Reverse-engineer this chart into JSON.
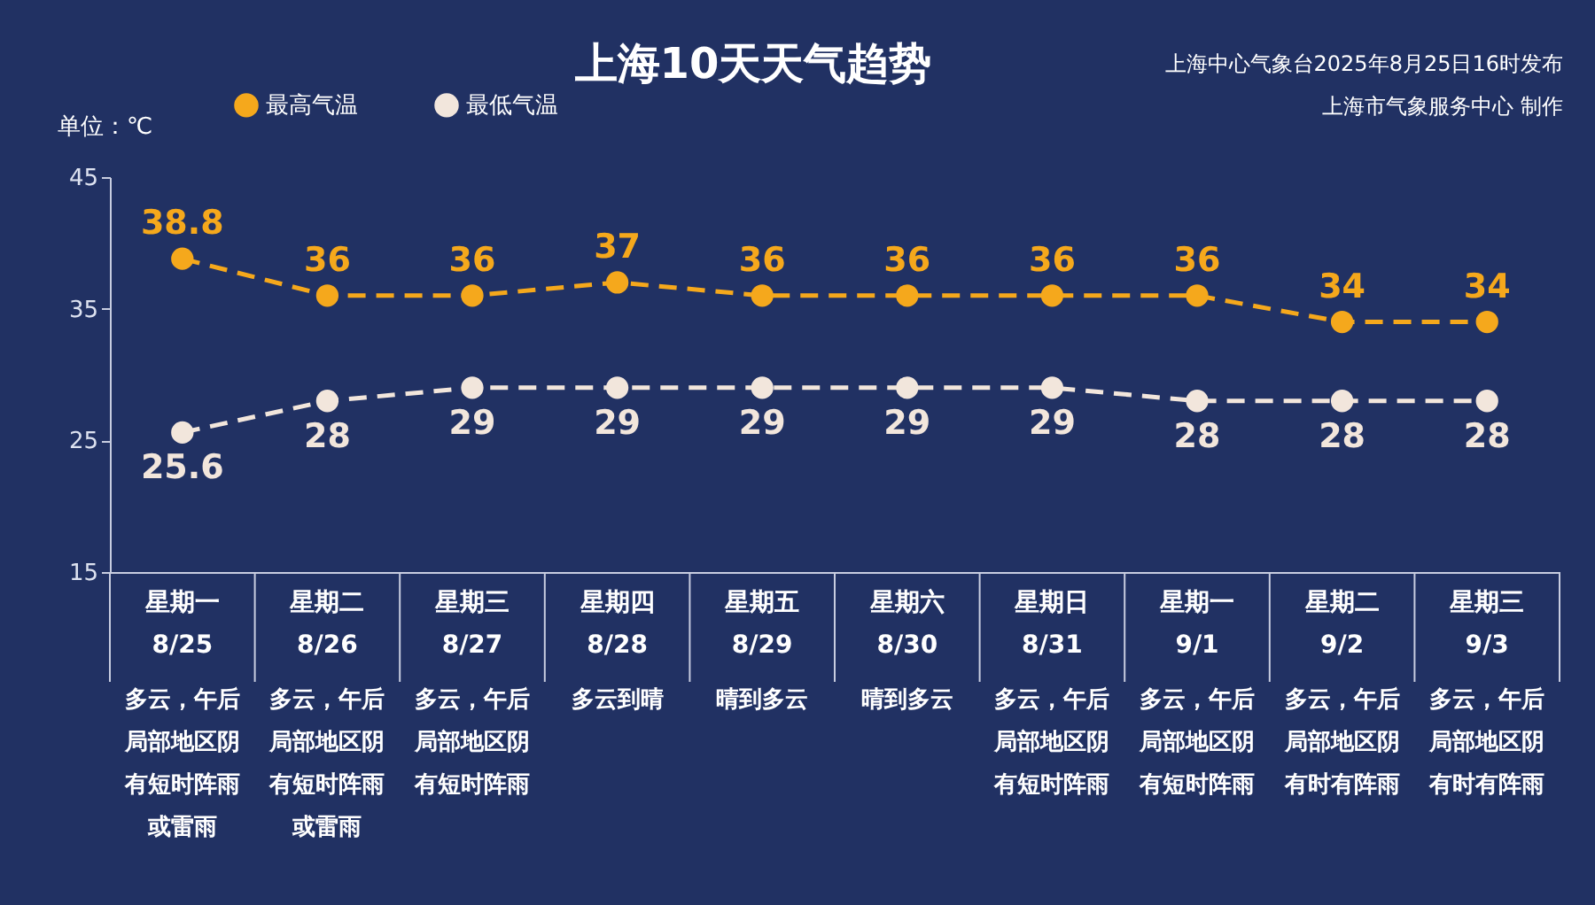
{
  "chart_data": {
    "type": "line",
    "title": "上海10天天气趋势",
    "ylabel": "单位：℃",
    "categories": [
      "星期一\n8/25",
      "星期二\n8/26",
      "星期三\n8/27",
      "星期四\n8/28",
      "星期五\n8/29",
      "星期六\n8/30",
      "星期日\n8/31",
      "星期一\n9/1",
      "星期二\n9/2",
      "星期三\n9/3"
    ],
    "series": [
      {
        "name": "最高气温",
        "color": "#f5a81c",
        "values": [
          38.8,
          36,
          36,
          37,
          36,
          36,
          36,
          36,
          34,
          34
        ]
      },
      {
        "name": "最低气温",
        "color": "#f2e6dc",
        "values": [
          25.6,
          28,
          29,
          29,
          29,
          29,
          29,
          28,
          28,
          28
        ]
      }
    ],
    "ylim": [
      15,
      45
    ],
    "yticks": [
      15,
      25,
      35,
      45
    ],
    "grid": false,
    "legend": "top left",
    "marker": "circle",
    "line_style": "dashed",
    "data_labels": true,
    "annotations": [
      "上海中心气象台2025年8月25日16时发布",
      "上海市气象服务中心 制作",
      "多云，午后局部地区阴有短时阵雨或雷雨",
      "多云，午后局部地区阴有短时阵雨或雷雨",
      "多云，午后局部地区阴有短时阵雨",
      "多云到晴",
      "晴到多云",
      "晴到多云",
      "多云，午后局部地区阴有短时阵雨",
      "多云，午后局部地区阴有短时阵雨",
      "多云，午后局部地区阴有时有阵雨",
      "多云，午后局部地区阴有时有阵雨"
    ]
  }
}
